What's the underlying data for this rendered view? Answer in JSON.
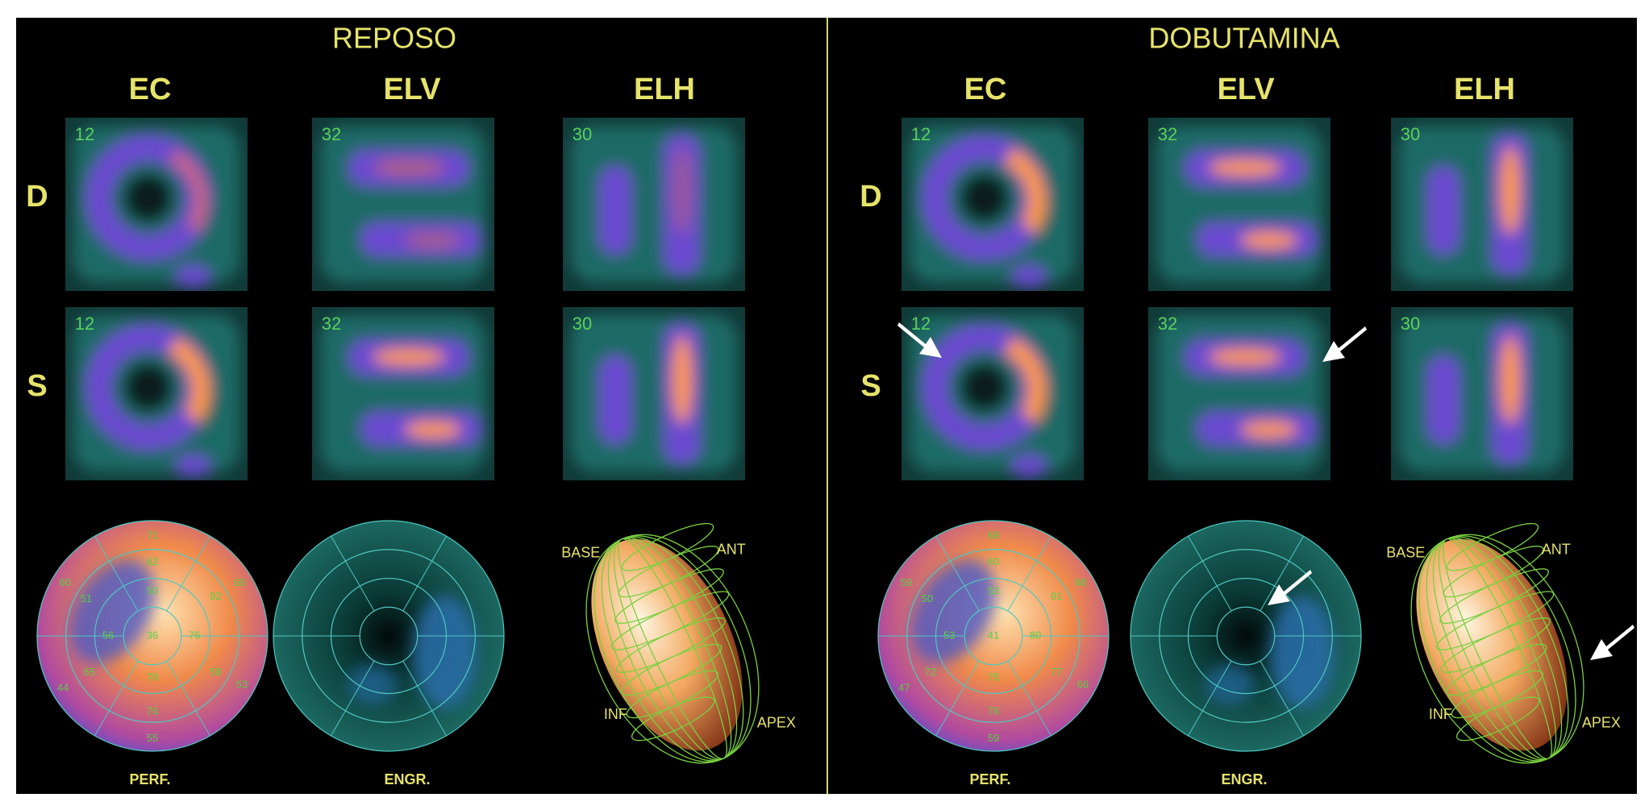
{
  "panels": [
    {
      "title": "REPOSO",
      "columns": [
        "EC",
        "ELV",
        "ELH"
      ],
      "rows": [
        "D",
        "S"
      ],
      "slices": [
        [
          "12",
          "32",
          "30"
        ],
        [
          "12",
          "32",
          "30"
        ]
      ],
      "polar_labels": [
        "PERF.",
        "ENGR."
      ],
      "perf_values": [
        "71",
        "62",
        "50",
        "60",
        "92",
        "60",
        "51",
        "56",
        "36",
        "76",
        "65",
        "78",
        "58",
        "53",
        "44",
        "76",
        "55"
      ],
      "model_labels": [
        "BASE",
        "ANT",
        "INF",
        "APEX"
      ]
    },
    {
      "title": "DOBUTAMINA",
      "columns": [
        "EC",
        "ELV",
        "ELH"
      ],
      "rows": [
        "D",
        "S"
      ],
      "slices": [
        [
          "12",
          "32",
          "30"
        ],
        [
          "12",
          "32",
          "30"
        ]
      ],
      "polar_labels": [
        "PERF.",
        "ENGR."
      ],
      "perf_values": [
        "69",
        "60",
        "53",
        "88",
        "91",
        "59",
        "50",
        "53",
        "41",
        "80",
        "72",
        "75",
        "77",
        "66",
        "47",
        "76",
        "59"
      ],
      "model_labels": [
        "BASE",
        "ANT",
        "INF",
        "APEX"
      ]
    }
  ]
}
